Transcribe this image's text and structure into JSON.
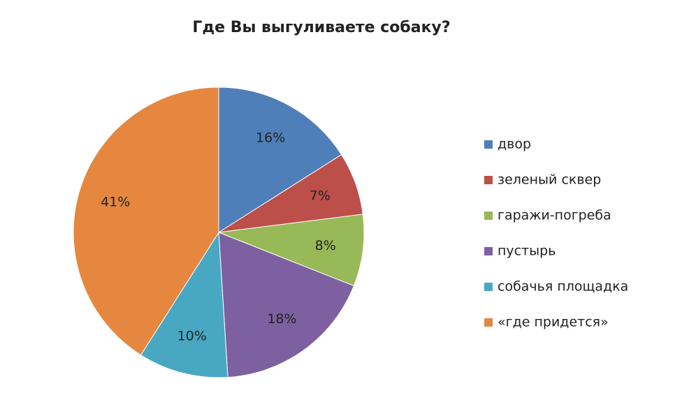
{
  "chart_data": {
    "type": "pie",
    "title": "Где Вы выгуливаете собаку?",
    "categories": [
      "двор",
      "зеленый сквер",
      "гаражи-погреба",
      "пустырь",
      "собачья площадка",
      "«где придется»"
    ],
    "values": [
      16,
      7,
      8,
      18,
      10,
      41
    ],
    "value_labels": [
      "16%",
      "7%",
      "8%",
      "18%",
      "10%",
      "41%"
    ],
    "colors": [
      "#4f7fb8",
      "#bd4f4b",
      "#97b957",
      "#7d60a0",
      "#48a8c2",
      "#e5873f"
    ],
    "legend": "right"
  }
}
